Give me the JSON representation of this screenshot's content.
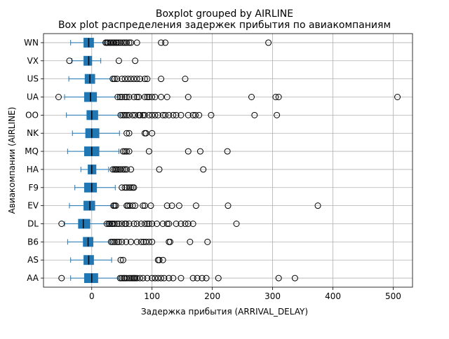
{
  "chart_data": {
    "type": "boxplot",
    "orientation": "horizontal",
    "suptitle": "Boxplot grouped by AIRLINE",
    "title": "Box plot распределения задержек прибытия по авиакомпаниям",
    "xlabel": "Задержка прибытия (ARRIVAL_DELAY)",
    "ylabel": "Авиакомпании (AIRLINE)",
    "xlim": [
      -80,
      532
    ],
    "xticks": [
      0,
      100,
      200,
      300,
      400,
      500
    ],
    "grid": true,
    "colors": {
      "box": "#1f77b4",
      "whisker": "#1f77b4",
      "median": "#000000",
      "grid": "#b0b0b0"
    },
    "categories": [
      "AA",
      "AS",
      "B6",
      "DL",
      "EV",
      "F9",
      "HA",
      "MQ",
      "NK",
      "OO",
      "UA",
      "US",
      "VX",
      "WN"
    ],
    "series": [
      {
        "category": "AA",
        "whisker_low": -35,
        "q1": -12,
        "median": 0,
        "q3": 10,
        "whisker_high": 45,
        "outliers": [
          -50,
          47,
          50,
          53,
          55,
          58,
          62,
          65,
          68,
          70,
          72,
          75,
          80,
          85,
          92,
          100,
          105,
          110,
          115,
          120,
          128,
          135,
          148,
          168,
          175,
          183,
          190,
          210,
          310,
          337
        ]
      },
      {
        "category": "AS",
        "whisker_low": -35,
        "q1": -13,
        "median": -5,
        "q3": 3,
        "whisker_high": 33,
        "outliers": [
          48,
          52,
          110,
          112,
          118
        ]
      },
      {
        "category": "B6",
        "whisker_low": -40,
        "q1": -14,
        "median": -6,
        "q3": 2,
        "whisker_high": 30,
        "outliers": [
          32,
          35,
          38,
          42,
          45,
          50,
          57,
          65,
          75,
          82,
          86,
          90,
          95,
          100,
          128,
          130,
          163,
          192
        ]
      },
      {
        "category": "DL",
        "whisker_low": -45,
        "q1": -22,
        "median": -14,
        "q3": -3,
        "whisker_high": 28,
        "outliers": [
          -50,
          25,
          28,
          30,
          33,
          35,
          38,
          42,
          45,
          50,
          55,
          57,
          62,
          70,
          75,
          82,
          88,
          92,
          95,
          100,
          108,
          118,
          125,
          128,
          140,
          148,
          155,
          160,
          168,
          240
        ]
      },
      {
        "category": "EV",
        "whisker_low": -37,
        "q1": -13,
        "median": -3,
        "q3": 5,
        "whisker_high": 36,
        "outliers": [
          36,
          38,
          40,
          58,
          60,
          63,
          68,
          72,
          85,
          88,
          98,
          125,
          133,
          145,
          173,
          226,
          375
        ]
      },
      {
        "category": "F9",
        "whisker_low": -28,
        "q1": -12,
        "median": 0,
        "q3": 8,
        "whisker_high": 39,
        "outliers": [
          50,
          55,
          58,
          62,
          65,
          68,
          70
        ]
      },
      {
        "category": "HA",
        "whisker_low": -18,
        "q1": -6,
        "median": 0,
        "q3": 7,
        "whisker_high": 28,
        "outliers": [
          35,
          38,
          40,
          42,
          45,
          48,
          52,
          55,
          58,
          65,
          112,
          185
        ]
      },
      {
        "category": "MQ",
        "whisker_low": -40,
        "q1": -12,
        "median": 0,
        "q3": 12,
        "whisker_high": 45,
        "outliers": [
          52,
          55,
          58,
          62,
          95,
          160,
          180,
          225
        ]
      },
      {
        "category": "NK",
        "whisker_low": -32,
        "q1": -10,
        "median": 0,
        "q3": 12,
        "whisker_high": 46,
        "outliers": [
          58,
          62,
          88,
          90,
          100
        ]
      },
      {
        "category": "OO",
        "whisker_low": -42,
        "q1": -8,
        "median": 0,
        "q3": 10,
        "whisker_high": 46,
        "outliers": [
          48,
          52,
          55,
          58,
          62,
          68,
          72,
          78,
          80,
          85,
          88,
          95,
          100,
          105,
          110,
          118,
          122,
          128,
          135,
          140,
          148,
          160,
          168,
          172,
          178,
          198,
          270,
          307
        ]
      },
      {
        "category": "UA",
        "whisker_low": -45,
        "q1": -12,
        "median": -2,
        "q3": 8,
        "whisker_high": 43,
        "outliers": [
          -55,
          43,
          47,
          50,
          55,
          58,
          62,
          70,
          75,
          78,
          88,
          92,
          95,
          100,
          105,
          115,
          125,
          160,
          265,
          305,
          310,
          507
        ]
      },
      {
        "category": "US",
        "whisker_low": -38,
        "q1": -11,
        "median": -3,
        "q3": 5,
        "whisker_high": 33,
        "outliers": [
          35,
          38,
          42,
          50,
          55,
          60,
          65,
          70,
          75,
          80,
          88,
          92,
          115,
          155
        ]
      },
      {
        "category": "VX",
        "whisker_low": -33,
        "q1": -13,
        "median": -5,
        "q3": 0,
        "whisker_high": 15,
        "outliers": [
          -37,
          45,
          72
        ]
      },
      {
        "category": "WN",
        "whisker_low": -35,
        "q1": -13,
        "median": -5,
        "q3": 3,
        "whisker_high": 23,
        "outliers": [
          23,
          25,
          27,
          30,
          32,
          35,
          37,
          40,
          42,
          45,
          48,
          52,
          55,
          58,
          62,
          65,
          75,
          115,
          122,
          293
        ]
      }
    ]
  }
}
